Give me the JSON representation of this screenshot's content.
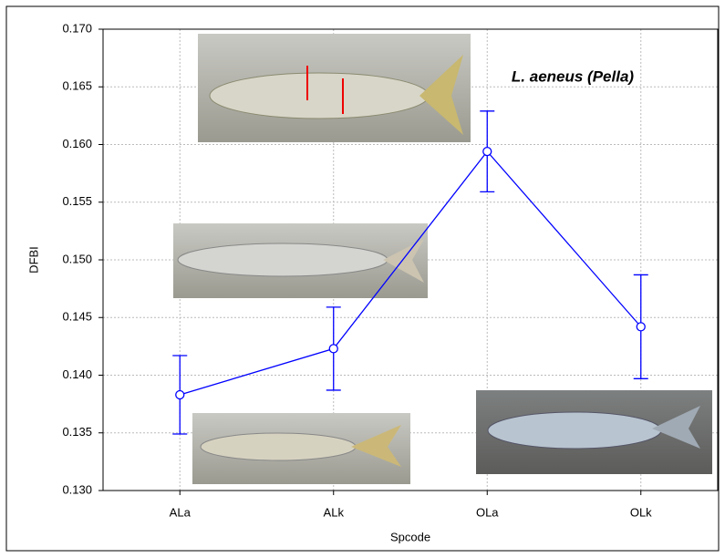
{
  "chart_data": {
    "type": "errorbar",
    "annotation": "L. aeneus (Pella)",
    "x_label": "Spcode",
    "y_label": "DFBI",
    "categories": [
      "ALa",
      "ALk",
      "OLa",
      "OLk"
    ],
    "series": [
      {
        "color": "#0000ff",
        "values": [
          0.1383,
          0.1423,
          0.1594,
          0.1442
        ],
        "errors": [
          0.0034,
          0.0036,
          0.0035,
          0.0045
        ]
      }
    ],
    "ylim": [
      0.13,
      0.17
    ],
    "yticks": [
      {
        "value": 0.13,
        "label": "0.130"
      },
      {
        "value": 0.135,
        "label": "0.135"
      },
      {
        "value": 0.14,
        "label": "0.140"
      },
      {
        "value": 0.145,
        "label": "0.145"
      },
      {
        "value": 0.15,
        "label": "0.150"
      },
      {
        "value": 0.155,
        "label": "0.155"
      },
      {
        "value": 0.16,
        "label": "0.160"
      },
      {
        "value": 0.165,
        "label": "0.165"
      },
      {
        "value": 0.17,
        "label": "0.170"
      }
    ],
    "grid": true
  }
}
